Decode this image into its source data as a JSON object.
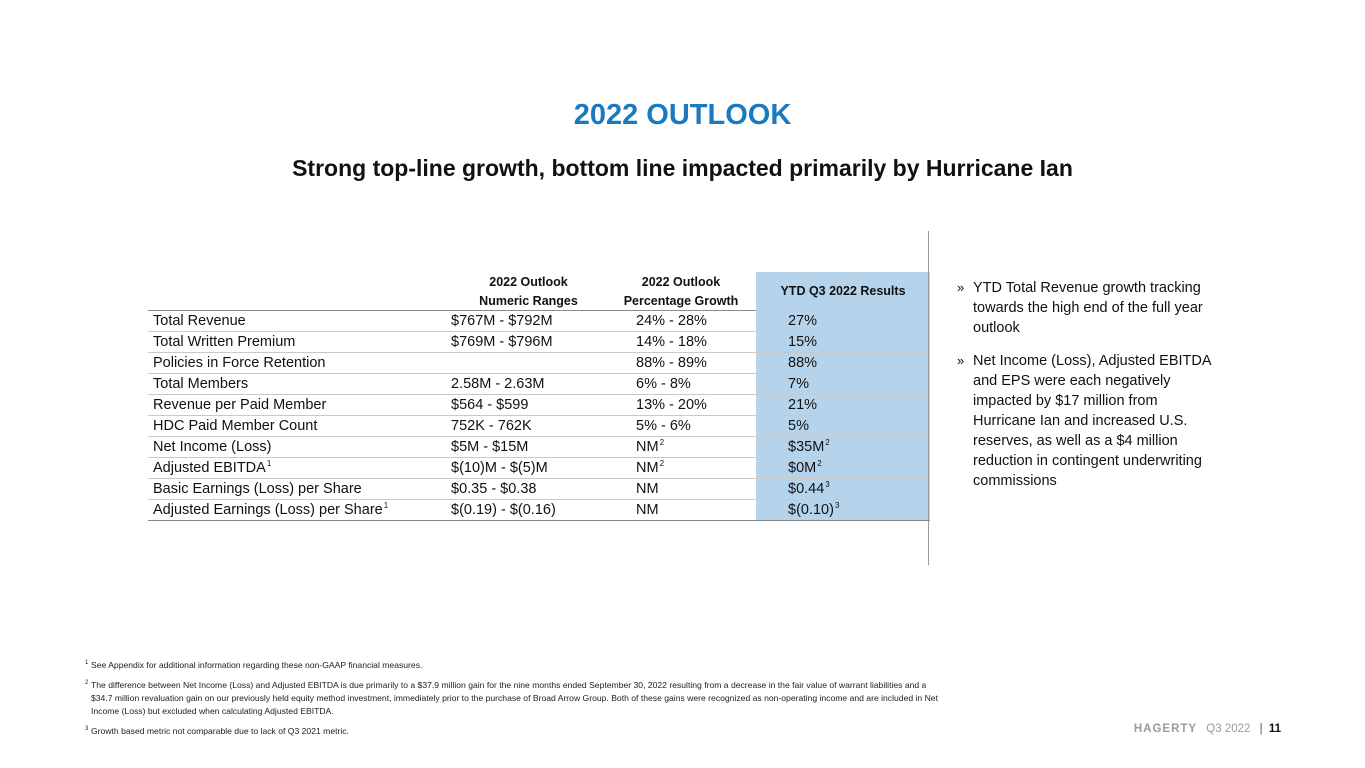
{
  "header": {
    "title": "2022 OUTLOOK",
    "subtitle": "Strong top-line growth, bottom line impacted primarily by Hurricane Ian"
  },
  "table": {
    "headers": {
      "col2_line1": "2022 Outlook",
      "col2_line2": "Numeric Ranges",
      "col3_line1": "2022 Outlook",
      "col3_line2": "Percentage Growth",
      "col4": "YTD Q3 2022 Results"
    },
    "rows": [
      {
        "metric": "Total Revenue",
        "metric_sup": "",
        "numeric": "$767M - $792M",
        "pct": "24% - 28%",
        "pct_sup": "",
        "ytd": "27%",
        "ytd_sup": ""
      },
      {
        "metric": "Total Written Premium",
        "metric_sup": "",
        "numeric": "$769M - $796M",
        "pct": "14% - 18%",
        "pct_sup": "",
        "ytd": "15%",
        "ytd_sup": ""
      },
      {
        "metric": "Policies in Force Retention",
        "metric_sup": "",
        "numeric": "",
        "pct": "88% - 89%",
        "pct_sup": "",
        "ytd": "88%",
        "ytd_sup": ""
      },
      {
        "metric": "Total Members",
        "metric_sup": "",
        "numeric": "2.58M - 2.63M",
        "pct": "6% - 8%",
        "pct_sup": "",
        "ytd": "7%",
        "ytd_sup": ""
      },
      {
        "metric": "Revenue per Paid Member",
        "metric_sup": "",
        "numeric": "$564 - $599",
        "pct": "13% - 20%",
        "pct_sup": "",
        "ytd": "21%",
        "ytd_sup": ""
      },
      {
        "metric": "HDC Paid Member Count",
        "metric_sup": "",
        "numeric": "752K - 762K",
        "pct": "5% - 6%",
        "pct_sup": "",
        "ytd": "5%",
        "ytd_sup": ""
      },
      {
        "metric": "Net Income (Loss)",
        "metric_sup": "",
        "numeric": "$5M - $15M",
        "pct": "NM",
        "pct_sup": "2",
        "ytd": "$35M",
        "ytd_sup": "2"
      },
      {
        "metric": "Adjusted EBITDA",
        "metric_sup": "1",
        "numeric": "$(10)M - $(5)M",
        "pct": "NM",
        "pct_sup": "2",
        "ytd": "$0M",
        "ytd_sup": "2"
      },
      {
        "metric": "Basic Earnings (Loss) per Share",
        "metric_sup": "",
        "numeric": "$0.35 - $0.38",
        "pct": "NM",
        "pct_sup": "",
        "ytd": "$0.44",
        "ytd_sup": "3"
      },
      {
        "metric": "Adjusted Earnings (Loss) per Share",
        "metric_sup": "1",
        "numeric": "$(0.19) - $(0.16)",
        "pct": "NM",
        "pct_sup": "",
        "ytd": "$(0.10)",
        "ytd_sup": "3"
      }
    ]
  },
  "bullets": [
    {
      "mark": "»",
      "text": "YTD Total Revenue growth tracking towards the high end of the full year outlook"
    },
    {
      "mark": "»",
      "text": "Net Income (Loss), Adjusted EBITDA and EPS were each negatively impacted by $17 million from Hurricane Ian and increased U.S. reserves, as well as a $4 million reduction in contingent underwriting commissions"
    }
  ],
  "footnotes": [
    {
      "num": "1",
      "text": "See Appendix for additional information regarding these non-GAAP financial measures."
    },
    {
      "num": "2",
      "text": "The difference between Net Income (Loss) and Adjusted EBITDA is due primarily to a $37.9 million gain for the nine months ended September 30, 2022 resulting from a decrease in the fair value of warrant liabilities and a $34.7 million revaluation gain on our previously held equity method investment, immediately prior to the purchase of Broad Arrow Group. Both of these gains were recognized as non-operating income and are included in Net Income (Loss) but excluded when calculating Adjusted EBITDA."
    },
    {
      "num": "3",
      "text": "Growth based metric not comparable due to lack of Q3 2021 metric."
    }
  ],
  "footer": {
    "brand": "HAGERTY",
    "period": "Q3 2022",
    "separator": "|",
    "page": "11"
  },
  "colors": {
    "title": "#1a7abf",
    "highlight_column": "#b6d3ec"
  }
}
